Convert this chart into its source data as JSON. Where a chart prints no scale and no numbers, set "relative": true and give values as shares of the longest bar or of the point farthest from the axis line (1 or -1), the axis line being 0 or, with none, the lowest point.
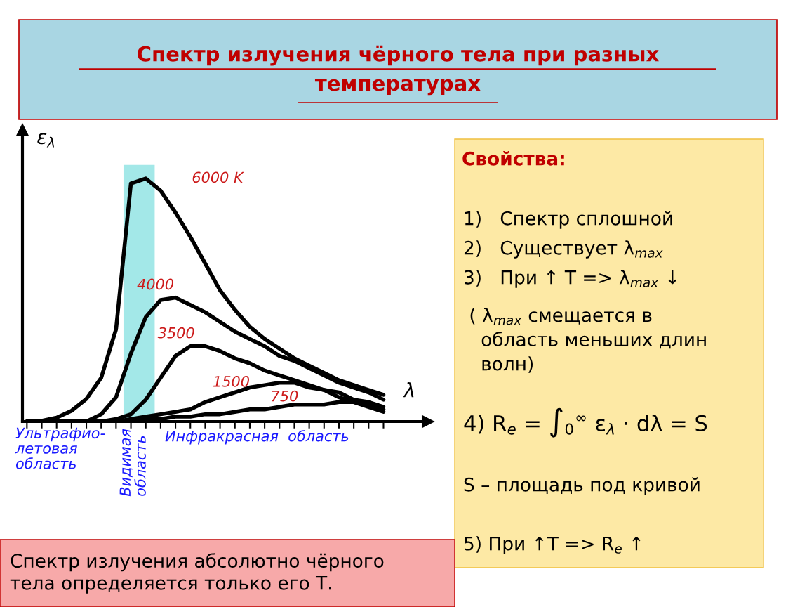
{
  "chart_data": {
    "type": "line",
    "title": "Спектр излучения чёрного тела при разных\nтемпературах",
    "xlabel": "λ",
    "ylabel": "ε$_{λ}$",
    "relative": true,
    "categories": [
      null,
      null,
      null,
      null,
      null,
      null,
      null,
      null,
      null,
      null,
      null,
      null,
      null,
      null,
      null,
      null,
      null,
      null,
      null,
      null,
      null,
      null,
      null,
      null,
      null
    ],
    "series": [
      {
        "name": "6000 K",
        "color": "#000000",
        "values": [
          0,
          0.003,
          0.016,
          0.044,
          0.093,
          0.18,
          0.38,
          0.98,
          1,
          0.95,
          0.86,
          0.76,
          0.65,
          0.54,
          0.46,
          0.39,
          0.34,
          0.3,
          0.26,
          0.23,
          0.2,
          0.17,
          0.15,
          0.13,
          0.11
        ]
      },
      {
        "name": "4000",
        "color": "#000000",
        "values": [
          0,
          0,
          0,
          0,
          0,
          0.03,
          0.1,
          0.28,
          0.43,
          0.5,
          0.51,
          0.48,
          0.45,
          0.41,
          0.37,
          0.34,
          0.31,
          0.27,
          0.25,
          0.22,
          0.19,
          0.16,
          0.14,
          0.12,
          0.09
        ]
      },
      {
        "name": "3500",
        "color": "#000000",
        "values": [
          0,
          0,
          0,
          0,
          0,
          0,
          0.01,
          0.03,
          0.09,
          0.18,
          0.27,
          0.31,
          0.31,
          0.29,
          0.26,
          0.24,
          0.21,
          0.19,
          0.17,
          0.15,
          0.13,
          0.12,
          0.09,
          0.08,
          0.06
        ]
      },
      {
        "name": "1500",
        "color": "#000000",
        "values": [
          0,
          0,
          0,
          0,
          0,
          0,
          0,
          0.01,
          0.02,
          0.03,
          0.04,
          0.05,
          0.08,
          0.1,
          0.12,
          0.14,
          0.15,
          0.16,
          0.16,
          0.14,
          0.13,
          0.1,
          0.08,
          0.06,
          0.04
        ]
      },
      {
        "name": "750",
        "color": "#000000",
        "values": [
          0,
          0,
          0,
          0,
          0,
          0,
          0,
          0,
          0.01,
          0.01,
          0.02,
          0.02,
          0.03,
          0.03,
          0.04,
          0.05,
          0.05,
          0.06,
          0.07,
          0.07,
          0.07,
          0.08,
          0.08,
          0.07,
          0.05
        ]
      }
    ],
    "annotations": [
      "Видимая\nобласть",
      "Ультрафио-\nлетовая\nобласть",
      "Инфракрасная  область",
      "Свойства:",
      "1)   Спектр сплошной",
      "2)   Существует λ$_{max}$",
      "3)   При ↑ T => λ$_{max}$ ↓",
      " ( λ$_{max}$ смещается в\n   область меньших длин\n   волн)",
      "4) R$_{e}$ = ∫$_{0}$$^{∞}$ ε$_{λ}$ · dλ = S",
      "S – площадь под кривой",
      "5) При ↑T => R$_{e}$ ↑",
      "Спектр излучения абсолютно чёрного\nтела определяется только его Т."
    ]
  }
}
